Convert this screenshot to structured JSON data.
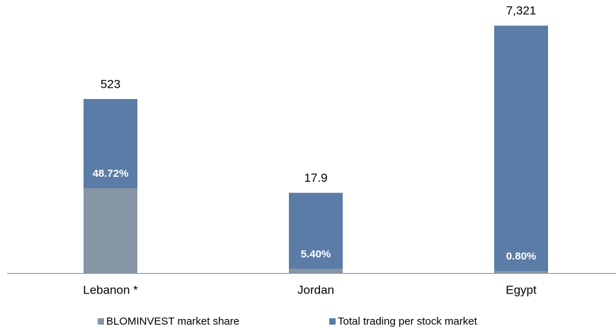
{
  "chart_data": {
    "type": "bar",
    "categories": [
      "Lebanon *",
      "Jordan",
      "Egypt"
    ],
    "series": [
      {
        "name": "BLOMINVEST market share",
        "color": "#8796a5",
        "values": [
          48.72,
          5.4,
          0.8
        ],
        "value_labels": [
          "48.72%",
          "5.40%",
          "0.80%"
        ]
      },
      {
        "name": "Total trading per stock market",
        "color": "#5a7ca6",
        "values": [
          523,
          17.9,
          7321
        ],
        "value_labels": [
          "523",
          "17.9",
          "7,321"
        ]
      }
    ],
    "ylim": [
      1,
      10000
    ],
    "log_scale": true
  }
}
